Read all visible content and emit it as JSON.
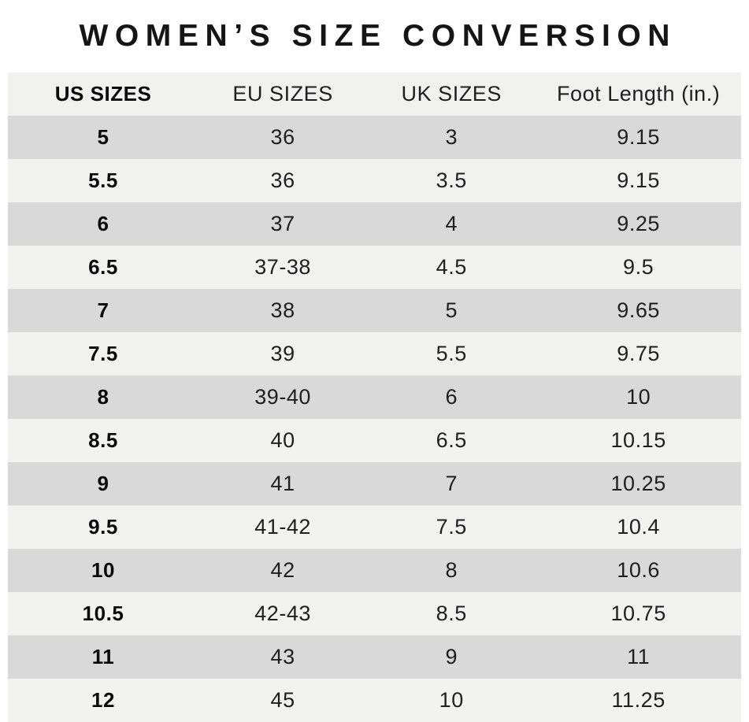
{
  "title": "WOMEN’S SIZE CONVERSION",
  "chart_data": {
    "type": "table",
    "title": "WOMEN’S SIZE CONVERSION",
    "columns": [
      "US SIZES",
      "EU SIZES",
      "UK SIZES",
      "Foot Length (in.)"
    ],
    "rows": [
      [
        "5",
        "36",
        "3",
        "9.15"
      ],
      [
        "5.5",
        "36",
        "3.5",
        "9.15"
      ],
      [
        "6",
        "37",
        "4",
        "9.25"
      ],
      [
        "6.5",
        "37-38",
        "4.5",
        "9.5"
      ],
      [
        "7",
        "38",
        "5",
        "9.65"
      ],
      [
        "7.5",
        "39",
        "5.5",
        "9.75"
      ],
      [
        "8",
        "39-40",
        "6",
        "10"
      ],
      [
        "8.5",
        "40",
        "6.5",
        "10.15"
      ],
      [
        "9",
        "41",
        "7",
        "10.25"
      ],
      [
        "9.5",
        "41-42",
        "7.5",
        "10.4"
      ],
      [
        "10",
        "42",
        "8",
        "10.6"
      ],
      [
        "10.5",
        "42-43",
        "8.5",
        "10.75"
      ],
      [
        "11",
        "43",
        "9",
        "11"
      ],
      [
        "12",
        "45",
        "10",
        "11.25"
      ]
    ],
    "layout": {
      "legend": "none",
      "grid": "off",
      "striped": true,
      "stripe_colors": [
        "#d9d9d9",
        "#f2f2f1"
      ],
      "header_bg": "#f1f1f0",
      "us_column_bold": true
    }
  },
  "colors": {
    "page_bg": "#ffffff",
    "header_bg": "#f1f1f0",
    "row_dark": "#d9d9d9",
    "row_light": "#f2f2f1",
    "text": "#1f1f1f",
    "title_text": "#151515"
  }
}
